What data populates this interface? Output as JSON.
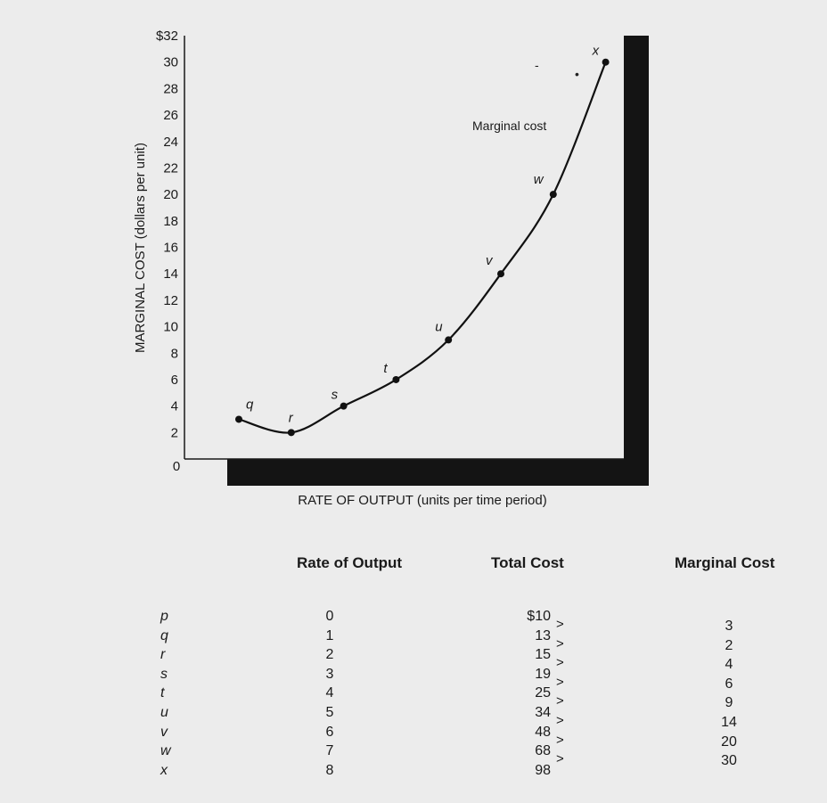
{
  "chart_data": {
    "type": "line",
    "xlabel": "RATE OF OUTPUT (units per time period)",
    "ylabel": "MARGINAL COST (dollars per unit)",
    "x_origin_label": "0",
    "ylim": [
      0,
      32
    ],
    "yticks": [
      "0",
      "2",
      "4",
      "6",
      "8",
      "10",
      "12",
      "14",
      "16",
      "18",
      "20",
      "22",
      "24",
      "26",
      "28",
      "30",
      "$32"
    ],
    "curve_label": "Marginal cost",
    "series": [
      {
        "name": "Marginal cost",
        "points": [
          {
            "label": "q",
            "y": 3
          },
          {
            "label": "r",
            "y": 2
          },
          {
            "label": "s",
            "y": 4
          },
          {
            "label": "t",
            "y": 6
          },
          {
            "label": "u",
            "y": 9
          },
          {
            "label": "v",
            "y": 14
          },
          {
            "label": "w",
            "y": 20
          },
          {
            "label": "x",
            "y": 30
          }
        ]
      }
    ],
    "grid": false,
    "legend": "none"
  },
  "table": {
    "headers": [
      "Rate of Output",
      "Total Cost",
      "Marginal Cost"
    ],
    "rows": [
      {
        "label": "p",
        "output": "0",
        "total_cost": "$10"
      },
      {
        "label": "q",
        "output": "1",
        "total_cost": "13"
      },
      {
        "label": "r",
        "output": "2",
        "total_cost": "15"
      },
      {
        "label": "s",
        "output": "3",
        "total_cost": "19"
      },
      {
        "label": "t",
        "output": "4",
        "total_cost": "25"
      },
      {
        "label": "u",
        "output": "5",
        "total_cost": "34"
      },
      {
        "label": "v",
        "output": "6",
        "total_cost": "48"
      },
      {
        "label": "w",
        "output": "7",
        "total_cost": "68"
      },
      {
        "label": "x",
        "output": "8",
        "total_cost": "98"
      }
    ],
    "marginal_costs": [
      "3",
      "2",
      "4",
      "6",
      "9",
      "14",
      "20",
      "30"
    ],
    "arrow_glyph": ">"
  }
}
